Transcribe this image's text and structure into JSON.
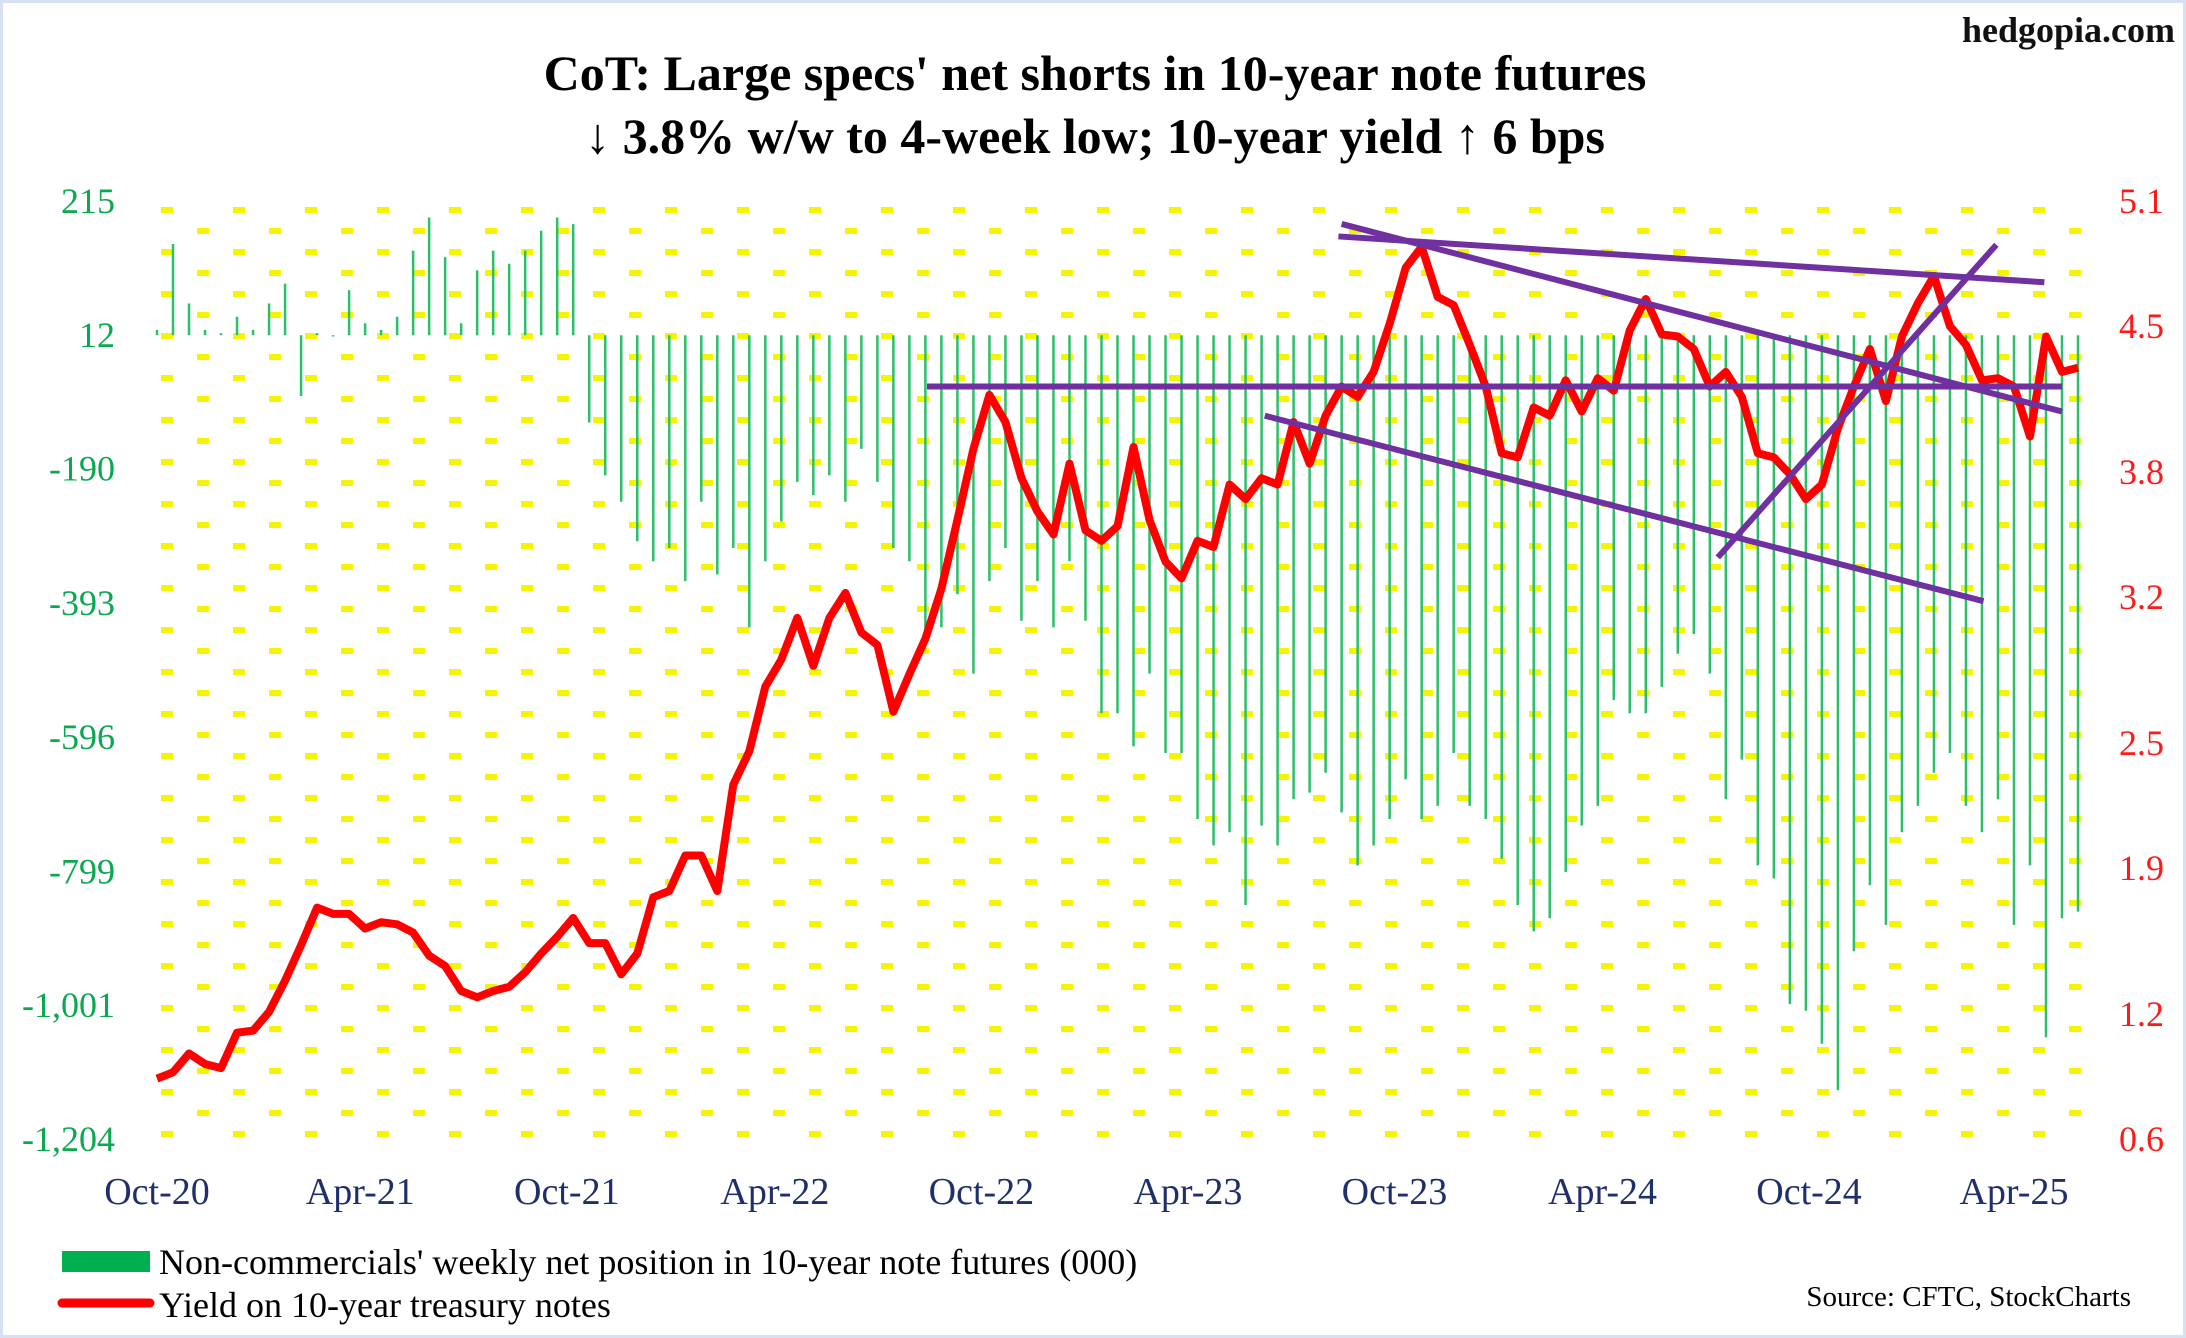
{
  "brand": "hedgopia.com",
  "chart_data": {
    "type": "bar+line",
    "title": "CoT: Large specs' net shorts in 10-year note futures",
    "subtitle": "↓ 3.8% w/w to 4-week low; 10-year yield ↑ 6 bps",
    "left_axis": {
      "range": [
        -1204,
        215
      ],
      "ticks": [
        "215",
        "12",
        "-190",
        "-393",
        "-596",
        "-799",
        "-1,001",
        "-1,204"
      ],
      "tick_values": [
        215,
        12,
        -190,
        -393,
        -596,
        -799,
        -1001,
        -1204
      ]
    },
    "right_axis": {
      "range": [
        0.6,
        5.1
      ],
      "ticks": [
        "5.1",
        "4.5",
        "3.8",
        "3.2",
        "2.5",
        "1.9",
        "1.2",
        "0.6"
      ],
      "tick_values": [
        5.1,
        4.5,
        3.8,
        3.2,
        2.5,
        1.9,
        1.2,
        0.6
      ]
    },
    "x_ticks": [
      {
        "label": "Oct-20",
        "index": 0
      },
      {
        "label": "Apr-21",
        "index": 12.7
      },
      {
        "label": "Oct-21",
        "index": 25.6
      },
      {
        "label": "Apr-22",
        "index": 38.6
      },
      {
        "label": "Oct-22",
        "index": 51.5
      },
      {
        "label": "Apr-23",
        "index": 64.4
      },
      {
        "label": "Oct-23",
        "index": 77.3
      },
      {
        "label": "Apr-24",
        "index": 90.3
      },
      {
        "label": "Oct-24",
        "index": 103.2
      },
      {
        "label": "Apr-25",
        "index": 116.0
      }
    ],
    "series": [
      {
        "name": "Non-commercials' weekly net position in 10-year note futures (000)",
        "type": "bar",
        "axis": "left",
        "color": "#2dbf6c",
        "values": [
          20,
          150,
          60,
          20,
          15,
          40,
          20,
          60,
          90,
          -80,
          15,
          10,
          80,
          30,
          20,
          40,
          140,
          190,
          130,
          30,
          110,
          140,
          120,
          140,
          170,
          190,
          180,
          -120,
          -200,
          -240,
          -300,
          -330,
          -310,
          -360,
          -240,
          -350,
          -310,
          -430,
          -330,
          -270,
          -210,
          -230,
          -200,
          -240,
          -160,
          -210,
          -310,
          -330,
          -450,
          -430,
          -380,
          -500,
          -360,
          -310,
          -420,
          -360,
          -430,
          -330,
          -420,
          -560,
          -560,
          -610,
          -500,
          -620,
          -620,
          -720,
          -760,
          -740,
          -850,
          -730,
          -760,
          -690,
          -680,
          -650,
          -710,
          -790,
          -760,
          -720,
          -660,
          -720,
          -700,
          -620,
          -700,
          -720,
          -780,
          -850,
          -890,
          -870,
          -800,
          -730,
          -700,
          -540,
          -560,
          -560,
          -520,
          -470,
          -440,
          -500,
          -690,
          -630,
          -790,
          -810,
          -1000,
          -1010,
          -1060,
          -1130,
          -920,
          -820,
          -880,
          -740,
          -700,
          -650,
          -620,
          -700,
          -740,
          -690,
          -880,
          -790,
          -1050,
          -870,
          -860
        ]
      },
      {
        "name": "Yield on 10-year treasury notes",
        "type": "line",
        "axis": "right",
        "color": "#ff0000",
        "values": [
          0.89,
          0.92,
          1.01,
          0.96,
          0.94,
          1.11,
          1.12,
          1.21,
          1.36,
          1.53,
          1.71,
          1.68,
          1.68,
          1.61,
          1.64,
          1.63,
          1.59,
          1.48,
          1.43,
          1.31,
          1.28,
          1.31,
          1.33,
          1.4,
          1.49,
          1.57,
          1.66,
          1.54,
          1.54,
          1.39,
          1.49,
          1.76,
          1.79,
          1.96,
          1.96,
          1.79,
          2.3,
          2.46,
          2.77,
          2.9,
          3.1,
          2.87,
          3.1,
          3.22,
          3.03,
          2.97,
          2.65,
          2.83,
          3.0,
          3.24,
          3.57,
          3.91,
          4.17,
          4.04,
          3.77,
          3.61,
          3.5,
          3.84,
          3.52,
          3.47,
          3.54,
          3.92,
          3.57,
          3.37,
          3.29,
          3.47,
          3.44,
          3.74,
          3.67,
          3.77,
          3.74,
          4.04,
          3.84,
          4.07,
          4.21,
          4.16,
          4.28,
          4.51,
          4.78,
          4.88,
          4.64,
          4.6,
          4.41,
          4.21,
          3.89,
          3.87,
          4.11,
          4.07,
          4.24,
          4.09,
          4.25,
          4.19,
          4.48,
          4.63,
          4.46,
          4.45,
          4.39,
          4.21,
          4.28,
          4.16,
          3.89,
          3.87,
          3.79,
          3.67,
          3.74,
          4.01,
          4.21,
          4.39,
          4.14,
          4.45,
          4.61,
          4.74,
          4.5,
          4.41,
          4.24,
          4.25,
          4.21,
          3.97,
          4.45,
          4.28,
          4.3
        ]
      }
    ],
    "trendlines": {
      "color": "#7030a0",
      "lines": [
        {
          "name": "support-resistance",
          "from": [
            48.1,
            4.21
          ],
          "to": [
            119.0,
            4.21
          ]
        },
        {
          "name": "upper-flat",
          "from": [
            73.8,
            4.93
          ],
          "to": [
            117.9,
            4.71
          ]
        },
        {
          "name": "descending",
          "from": [
            74.0,
            4.99
          ],
          "to": [
            119.0,
            4.09
          ]
        },
        {
          "name": "lower-channel",
          "from": [
            69.2,
            4.07
          ],
          "to": [
            114.1,
            3.18
          ]
        },
        {
          "name": "rising",
          "from": [
            97.5,
            3.39
          ],
          "to": [
            114.9,
            4.89
          ]
        }
      ]
    },
    "legend": {
      "placement": "bottom-left",
      "items": [
        "Non-commercials' weekly net position in 10-year note futures (000)",
        "Yield on 10-year treasury notes"
      ]
    },
    "source": "Source: CFTC, StockCharts"
  }
}
